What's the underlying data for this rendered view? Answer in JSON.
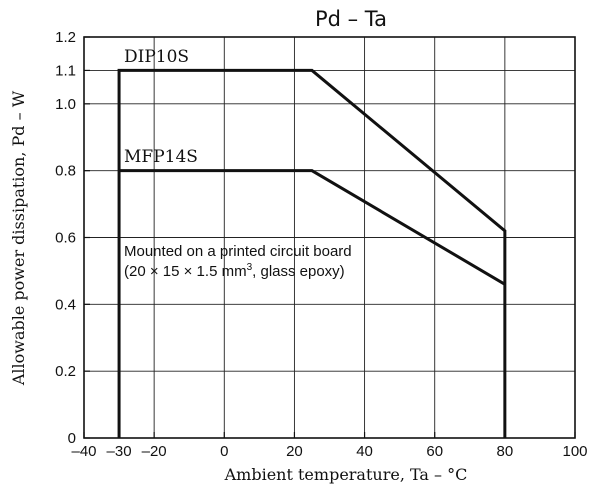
{
  "chart_data": {
    "type": "line",
    "title": "Pd  –  Ta",
    "xlabel": "Ambient temperature, Ta – °C",
    "ylabel": "Allowable power dissipation, Pd – W",
    "xlim": [
      -40,
      100
    ],
    "ylim": [
      0,
      1.2
    ],
    "x_ticks": [
      -40,
      -30,
      -20,
      0,
      20,
      40,
      60,
      80,
      100
    ],
    "x_tick_labels": [
      "–40",
      "–30",
      "–20",
      "0",
      "20",
      "40",
      "60",
      "80",
      "100"
    ],
    "y_ticks": [
      0,
      0.2,
      0.4,
      0.6,
      0.8,
      1.0,
      1.1,
      1.2
    ],
    "y_tick_labels": [
      "0",
      "0.2",
      "0.4",
      "0.6",
      "0.8",
      "1.0",
      "1.1",
      "1.2"
    ],
    "grid": true,
    "grid_x": [
      -20,
      0,
      20,
      40,
      60,
      80
    ],
    "grid_y": [
      0.2,
      0.4,
      0.6,
      0.8,
      1.0,
      1.1
    ],
    "series": [
      {
        "name": "DIP10S",
        "x": [
          -30,
          -30,
          25,
          80,
          80
        ],
        "y": [
          0,
          1.1,
          1.1,
          0.62,
          0
        ]
      },
      {
        "name": "MFP14S",
        "x": [
          -30,
          25,
          80
        ],
        "y": [
          0.8,
          0.8,
          0.46
        ]
      }
    ],
    "annotation": {
      "line1": "Mounted on a printed circuit board",
      "line2_prefix": "(20 × 15 × 1.5 mm",
      "line2_sup": "3",
      "line2_suffix": ", glass epoxy)"
    }
  }
}
